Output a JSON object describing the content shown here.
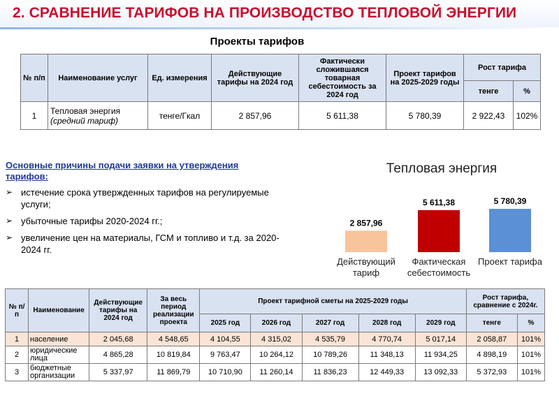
{
  "header": {
    "title": "2. СРАВНЕНИЕ ТАРИФОВ НА ПРОИЗВОДСТВО ТЕПЛОВОЙ ЭНЕРГИИ"
  },
  "projects": {
    "subtitle": "Проекты тарифов",
    "headers": {
      "num": "№ п/п",
      "service": "Наименование услуг",
      "unit": "Ед. измерения",
      "current": "Действующие тарифы на 2024 год",
      "actual_cost": "Фактически сложившаяся товарная себестоимость за 2024 год",
      "project": "Проект тарифов на 2025-2029 годы",
      "growth": "Рост тарифа",
      "growth_tenge": "тенге",
      "growth_pct": "%"
    },
    "row": {
      "num": "1",
      "service": "Тепловая энергия",
      "service_note": "(средний тариф)",
      "unit": "тенге/Гкал",
      "current": "2 857,96",
      "actual_cost": "5 611,38",
      "project": "5 780,39",
      "growth_tenge": "2 922,43",
      "growth_pct": "102%"
    }
  },
  "reasons": {
    "heading": "Основные причины подачи заявки на утверждения тарифов:",
    "bullet": "➢",
    "items": [
      "истечение срока утвержденных тарифов на регулируемые услуги;",
      "убыточные тарифы 2020-2024 гг.;",
      "увеличение цен на материалы, ГСМ и топливо и т.д. за 2020-2024 гг."
    ]
  },
  "chart_data": {
    "type": "bar",
    "title": "Тепловая энергия",
    "categories": [
      "Действующий тариф",
      "Фактическая себестоимость",
      "Проект тарифа"
    ],
    "category_lines": [
      [
        "Действующий",
        "тариф"
      ],
      [
        "Фактическая",
        "себестоимость"
      ],
      [
        "Проект тарифа"
      ]
    ],
    "values": [
      2857.96,
      5611.38,
      5780.39
    ],
    "value_labels": [
      "2 857,96",
      "5 611,38",
      "5 780,39"
    ],
    "colors": [
      "#f8c49c",
      "#c00000",
      "#5b8fd6"
    ],
    "ylim": [
      0,
      5780.39
    ],
    "grid": false,
    "legend": "none"
  },
  "detail": {
    "headers": {
      "num": "№ п/п",
      "name": "Наименование",
      "current": "Действующие тарифы на 2024 год",
      "total": "За весь период реализации проекта",
      "project": "Проект тарифной сметы на 2025-2029 годы",
      "growth": "Рост тарифа, сравнение с 2024г.",
      "years": [
        "2025 год",
        "2026 год",
        "2027 год",
        "2028 год",
        "2029 год"
      ],
      "growth_tenge": "тенге",
      "growth_pct": "%"
    },
    "rows": [
      {
        "num": "1",
        "name": "население",
        "current": "2 045,68",
        "total": "4 548,65",
        "years": [
          "4 104,55",
          "4 315,02",
          "4 535,79",
          "4 770,74",
          "5 017,14"
        ],
        "growth_tenge": "2 058,87",
        "growth_pct": "101%"
      },
      {
        "num": "2",
        "name": "юридические лица",
        "current": "4 865,28",
        "total": "10 819,84",
        "years": [
          "9 763,47",
          "10 264,12",
          "10 789,26",
          "11 348,13",
          "11 934,25"
        ],
        "growth_tenge": "4 898,19",
        "growth_pct": "101%"
      },
      {
        "num": "3",
        "name": "бюджетные организации",
        "current": "5 337,97",
        "total": "11 869,79",
        "years": [
          "10 710,90",
          "11 260,14",
          "11 836,23",
          "12 449,33",
          "13 092,33"
        ],
        "growth_tenge": "5 372,93",
        "growth_pct": "101%"
      }
    ]
  }
}
